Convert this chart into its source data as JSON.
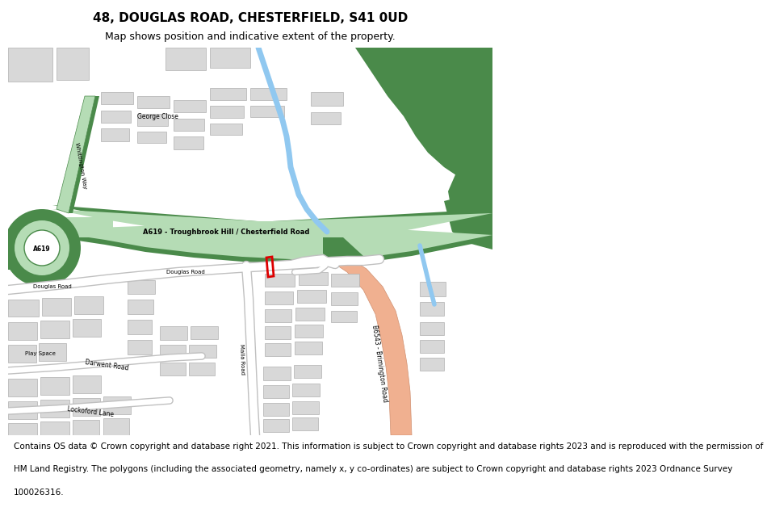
{
  "title": "48, DOUGLAS ROAD, CHESTERFIELD, S41 0UD",
  "subtitle": "Map shows position and indicative extent of the property.",
  "footer_line1": "Contains OS data © Crown copyright and database right 2021. This information is subject to Crown copyright and database rights 2023 and is reproduced with the permission of",
  "footer_line2": "HM Land Registry. The polygons (including the associated geometry, namely x, y co-ordinates) are subject to Crown copyright and database rights 2023 Ordnance Survey",
  "footer_line3": "100026316.",
  "bg_color": "#ffffff",
  "map_bg": "#ffffff",
  "road_green_light": "#b5dcb5",
  "road_green_dark": "#4a8a4a",
  "road_pink": "#f0b090",
  "road_pink_outline": "#d09070",
  "building_color": "#d8d8d8",
  "building_outline": "#b0b0b0",
  "water_color": "#90c8f0",
  "park_dark": "#3d7a3d",
  "plot_red": "#dd0000",
  "road_white": "#ffffff",
  "road_outline_gray": "#c0c0c0",
  "title_fontsize": 11,
  "subtitle_fontsize": 9,
  "footer_fontsize": 7.5
}
